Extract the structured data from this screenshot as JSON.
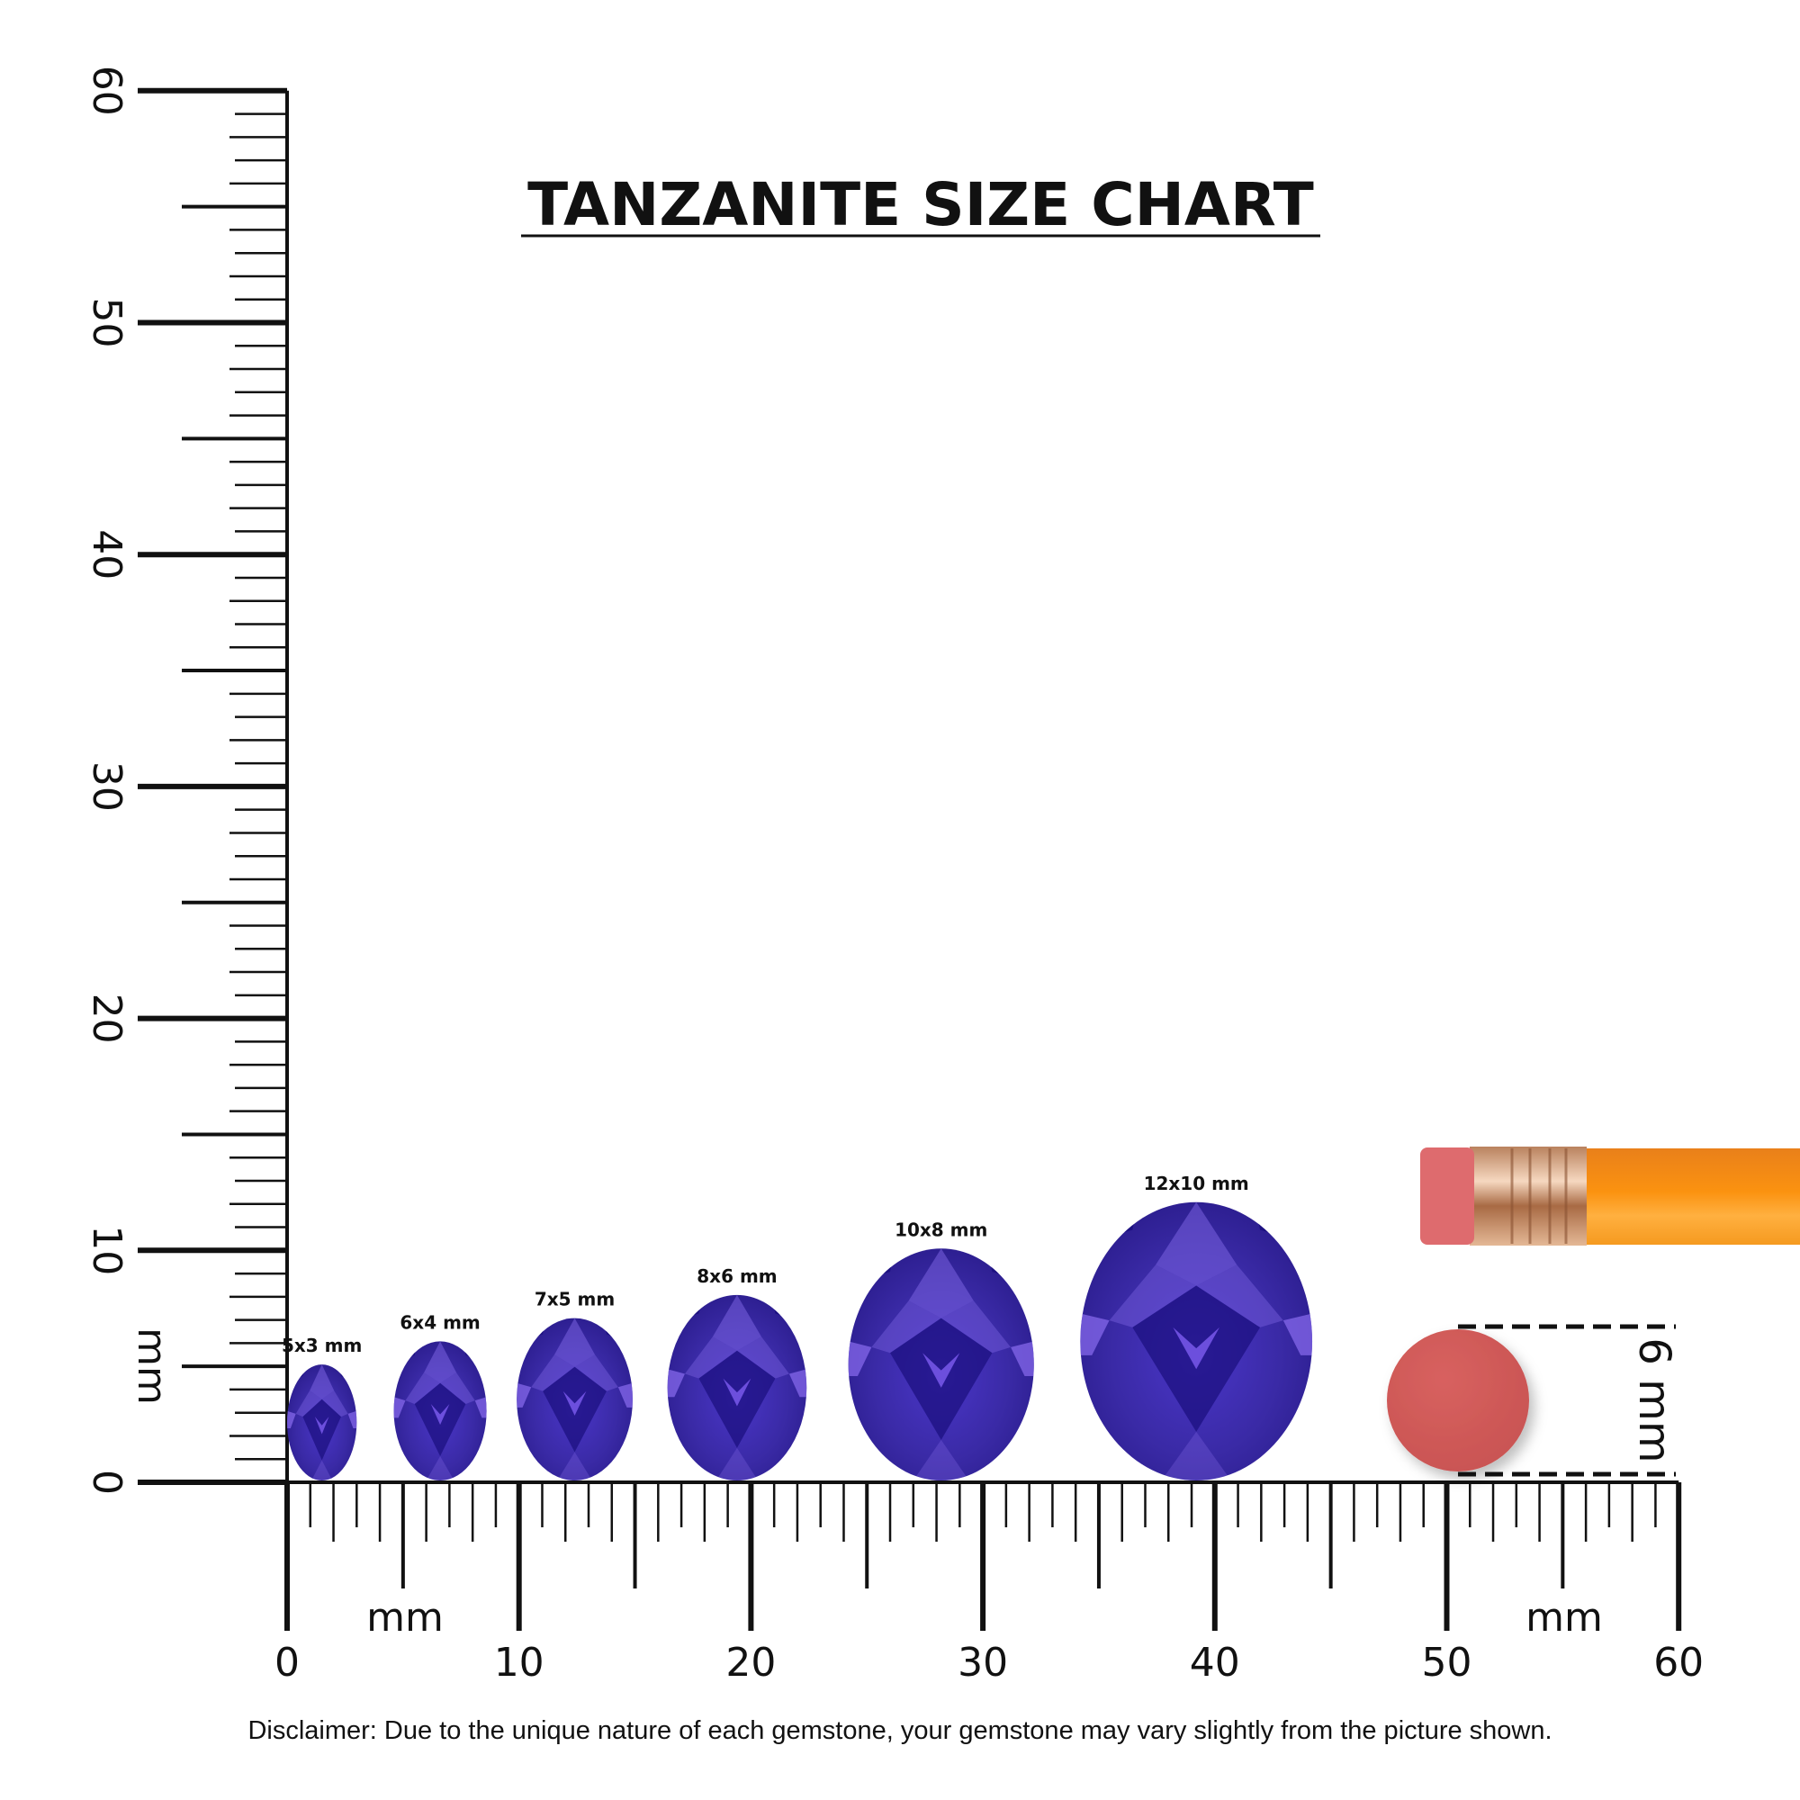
{
  "title": "TANZANITE SIZE CHART",
  "ruler": {
    "unit_label": "mm",
    "range_mm": [
      0,
      60
    ],
    "labels": [
      "0",
      "10",
      "20",
      "30",
      "40",
      "50",
      "60"
    ]
  },
  "gems": [
    {
      "label": "5x3 mm",
      "length_mm": 5,
      "width_mm": 3,
      "position_mm": 1.5
    },
    {
      "label": "6x4 mm",
      "length_mm": 6,
      "width_mm": 4,
      "position_mm": 6.6
    },
    {
      "label": "7x5 mm",
      "length_mm": 7,
      "width_mm": 5,
      "position_mm": 12.4
    },
    {
      "label": "8x6 mm",
      "length_mm": 8,
      "width_mm": 6,
      "position_mm": 19.4
    },
    {
      "label": "10x8 mm",
      "length_mm": 10,
      "width_mm": 8,
      "position_mm": 28.2
    },
    {
      "label": "12x10 mm",
      "length_mm": 12,
      "width_mm": 10,
      "position_mm": 39.2
    }
  ],
  "eraser_reference": {
    "label": "6 mm",
    "diameter_mm": 6
  },
  "disclaimer": "Disclaimer: Due to the unique nature of each gemstone, your gemstone may vary slightly from the picture shown.",
  "colors": {
    "gem_base": "#3a2a9e",
    "gem_dark": "#1c1080",
    "gem_light": "#7a62e0",
    "eraser": "#d05a5a",
    "pencil": "#f7951c",
    "ferrule": "#d9a27a"
  }
}
